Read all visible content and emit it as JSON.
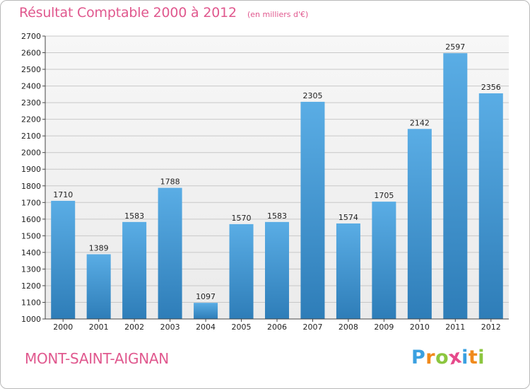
{
  "title": "Résultat Comptable 2000 à 2012",
  "subtitle": "(en milliers d'€)",
  "commune": "MONT-SAINT-AIGNAN",
  "brand": {
    "letters": [
      "P",
      "r",
      "o",
      "x",
      "i",
      "t",
      "i"
    ],
    "colors": [
      "#3aa0e0",
      "#f08a1c",
      "#8cc63f",
      "#e64a8b",
      "#3aa0e0",
      "#f08a1c",
      "#8cc63f"
    ]
  },
  "colors": {
    "bar_top": "#5aade5",
    "bar_bottom": "#2e7db8",
    "grid": "#c8c8c8",
    "axis": "#444444",
    "plot_bg": "#efefef",
    "text": "#222222"
  },
  "chart_data": {
    "type": "bar",
    "categories": [
      "2000",
      "2001",
      "2002",
      "2003",
      "2004",
      "2005",
      "2006",
      "2007",
      "2008",
      "2009",
      "2010",
      "2011",
      "2012"
    ],
    "values": [
      1710,
      1389,
      1583,
      1788,
      1097,
      1570,
      1583,
      2305,
      1574,
      1705,
      2142,
      2597,
      2356
    ],
    "ylim": [
      1000,
      2700
    ],
    "yticks": [
      1000,
      1100,
      1200,
      1300,
      1400,
      1500,
      1600,
      1700,
      1800,
      1900,
      2000,
      2100,
      2200,
      2300,
      2400,
      2500,
      2600,
      2700
    ],
    "grid": true,
    "data_labels": true
  }
}
